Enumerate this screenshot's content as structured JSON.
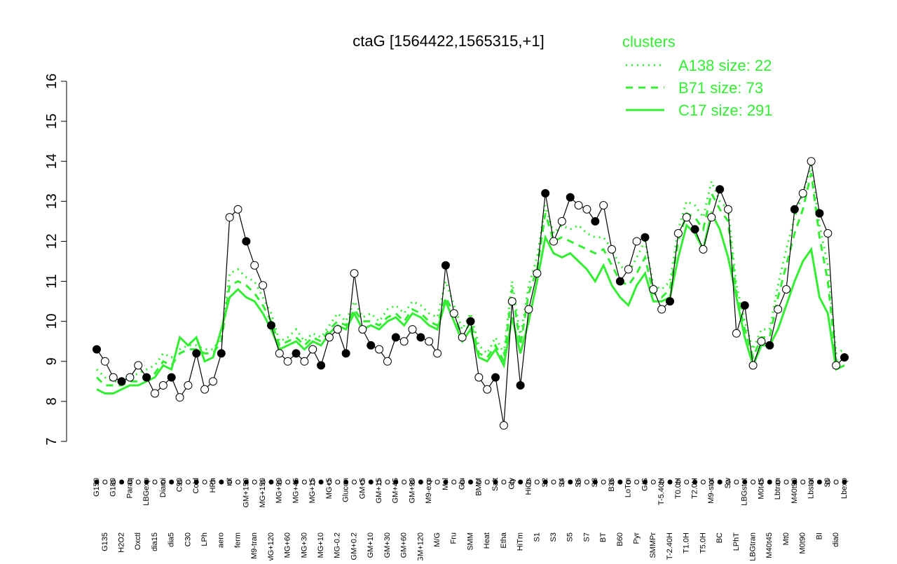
{
  "chart_data": {
    "type": "line",
    "title": "ctaG [1564422,1565315,+1]",
    "categories": [
      "G150",
      "G135",
      "G180",
      "H2O2",
      "Paraq",
      "Oxctl",
      "LBGexp",
      "dia15",
      "Diami",
      "dia5",
      "C90",
      "C30",
      "Cold",
      "LPh",
      "HPh",
      "aero",
      "nit",
      "ferm",
      "GM+150",
      "M9-tran",
      "MG+150",
      "MG+120",
      "MG+90",
      "MG+60",
      "MG+45",
      "MG+30",
      "MG+15",
      "MG+10",
      "MG+5",
      "MG-0.2",
      "Glucon",
      "GM+0.2",
      "GM+5",
      "GM+10",
      "GM+15",
      "GM+30",
      "GM+45",
      "GM+60",
      "GM+90",
      "GM+120",
      "M9-exp",
      "M/G",
      "Mal",
      "Fru",
      "Glu",
      "SMM",
      "BMM",
      "Heat",
      "Salt",
      "Etha",
      "Gly",
      "HiTm",
      "HiOs",
      "S1",
      "S2",
      "S3",
      "S4",
      "S5",
      "S6",
      "S7",
      "S8",
      "BT",
      "B36",
      "B60",
      "LoTm",
      "Pyr",
      "G/S",
      "SMMPr",
      "T-5.40H",
      "T-2.40H",
      "T0.0H",
      "T1.0H",
      "T2.0H",
      "T5.0H",
      "M9-stat",
      "BC",
      "Sw",
      "LPhT",
      "LBGstat",
      "LBGtran",
      "M0t45",
      "M40t45",
      "Lbtran",
      "Mt0",
      "M40t90",
      "M0t90",
      "Lbstat",
      "BI",
      "S0",
      "dia0",
      "Lbexp"
    ],
    "values": [
      9.3,
      9.0,
      8.6,
      8.5,
      8.6,
      8.9,
      8.6,
      8.2,
      8.4,
      8.6,
      8.1,
      8.4,
      9.2,
      8.3,
      8.5,
      9.2,
      12.6,
      12.8,
      12.0,
      11.4,
      10.9,
      9.9,
      9.2,
      9.0,
      9.2,
      9.0,
      9.3,
      8.9,
      9.6,
      9.8,
      9.2,
      11.2,
      9.8,
      9.4,
      9.3,
      9.0,
      9.6,
      9.5,
      9.8,
      9.6,
      9.5,
      9.2,
      11.4,
      10.2,
      9.6,
      10.0,
      8.6,
      8.3,
      8.6,
      7.4,
      10.5,
      8.4,
      10.3,
      11.2,
      13.2,
      12.0,
      12.5,
      13.1,
      12.9,
      12.8,
      12.5,
      12.9,
      11.8,
      11.0,
      11.3,
      12.0,
      12.1,
      10.8,
      10.3,
      10.5,
      12.2,
      12.6,
      12.3,
      11.8,
      12.6,
      13.3,
      12.8,
      9.7,
      10.4,
      8.9,
      9.5,
      9.4,
      10.3,
      10.8,
      12.8,
      13.2,
      14.0,
      12.7,
      12.2,
      8.9,
      9.1
    ],
    "color": "#000000",
    "legend_title": "clusters",
    "series": [
      {
        "name": "A138 size: 22",
        "color": "#33ee33",
        "dash": "dotted",
        "values": [
          8.8,
          8.6,
          8.5,
          8.5,
          8.6,
          8.7,
          8.8,
          8.9,
          9.2,
          9.1,
          9.3,
          9.4,
          9.4,
          9.3,
          9.3,
          9.6,
          11.2,
          11.3,
          11.1,
          11.0,
          10.6,
          10.2,
          9.5,
          9.6,
          9.8,
          9.5,
          9.7,
          9.6,
          9.9,
          10.2,
          10.0,
          10.5,
          10.1,
          10.2,
          10.0,
          10.3,
          10.4,
          10.2,
          10.5,
          10.4,
          10.2,
          10.1,
          11.0,
          10.4,
          9.8,
          10.2,
          9.4,
          9.2,
          9.6,
          9.2,
          11.0,
          9.6,
          10.9,
          11.6,
          12.9,
          12.2,
          12.4,
          12.3,
          12.4,
          12.2,
          12.1,
          12.1,
          11.8,
          11.4,
          11.2,
          11.6,
          12.0,
          10.9,
          10.8,
          11.0,
          12.3,
          13.0,
          12.9,
          12.6,
          13.5,
          13.0,
          12.8,
          10.9,
          10.0,
          9.3,
          9.8,
          9.8,
          10.9,
          11.8,
          12.6,
          13.2,
          13.9,
          12.4,
          11.4,
          9.2,
          9.3
        ]
      },
      {
        "name": "B71 size: 73",
        "color": "#33ee33",
        "dash": "dashed",
        "values": [
          8.6,
          8.4,
          8.4,
          8.4,
          8.5,
          8.5,
          8.6,
          8.7,
          9.0,
          8.9,
          9.2,
          9.3,
          9.3,
          9.2,
          9.2,
          9.5,
          10.9,
          11.0,
          10.9,
          10.7,
          10.4,
          10.0,
          9.4,
          9.5,
          9.6,
          9.4,
          9.6,
          9.5,
          9.8,
          10.0,
          9.9,
          10.3,
          10.0,
          10.0,
          9.9,
          10.1,
          10.2,
          10.0,
          10.3,
          10.2,
          10.0,
          9.9,
          10.6,
          10.2,
          9.6,
          10.0,
          9.2,
          9.1,
          9.4,
          9.0,
          10.8,
          9.4,
          10.7,
          11.3,
          12.7,
          12.0,
          12.1,
          12.0,
          11.9,
          11.8,
          11.7,
          11.8,
          11.4,
          11.0,
          10.9,
          11.2,
          11.6,
          10.7,
          10.6,
          10.8,
          12.0,
          12.7,
          12.6,
          12.3,
          13.2,
          12.8,
          12.5,
          10.7,
          9.8,
          9.1,
          9.6,
          9.6,
          10.6,
          11.4,
          12.2,
          12.8,
          13.7,
          12.1,
          11.0,
          9.0,
          9.1
        ]
      },
      {
        "name": "C17 size: 291",
        "color": "#33ee33",
        "dash": "solid",
        "values": [
          8.3,
          8.2,
          8.2,
          8.3,
          8.4,
          8.4,
          8.5,
          8.6,
          8.9,
          8.8,
          9.6,
          9.4,
          9.6,
          9.0,
          9.1,
          9.8,
          10.6,
          10.8,
          10.6,
          10.5,
          10.2,
          9.8,
          9.3,
          9.4,
          9.5,
          9.3,
          9.5,
          9.4,
          9.7,
          9.9,
          9.8,
          10.2,
          9.8,
          9.9,
          9.8,
          10.0,
          10.1,
          9.9,
          10.2,
          10.1,
          9.9,
          9.8,
          10.5,
          10.0,
          9.5,
          9.8,
          9.1,
          9.0,
          9.3,
          8.9,
          10.1,
          9.2,
          10.0,
          11.0,
          12.1,
          11.7,
          11.6,
          11.7,
          11.5,
          11.3,
          11.0,
          11.4,
          10.9,
          10.6,
          10.4,
          10.9,
          11.2,
          10.5,
          10.5,
          10.6,
          11.6,
          12.4,
          12.2,
          11.8,
          12.7,
          12.3,
          11.6,
          10.6,
          9.6,
          8.9,
          9.4,
          9.4,
          9.8,
          10.4,
          11.0,
          11.5,
          11.8,
          10.6,
          10.2,
          8.8,
          8.9
        ]
      }
    ],
    "ylim": [
      7,
      16
    ],
    "yticks": [
      7,
      8,
      9,
      10,
      11,
      12,
      13,
      14,
      15,
      16
    ],
    "grid": false,
    "legend": "top-right"
  }
}
